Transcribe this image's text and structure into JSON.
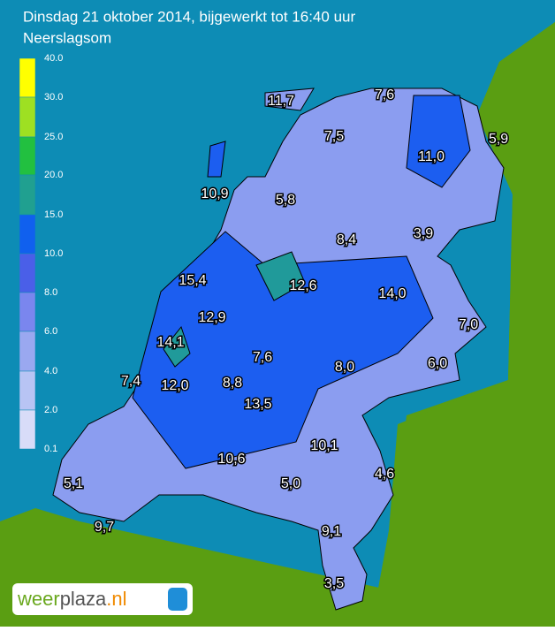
{
  "header": {
    "title": "Dinsdag 21 oktober 2014, bijgewerkt tot 16:40 uur",
    "subtitle": "Neerslagsom"
  },
  "legend": {
    "labels": [
      "40.0",
      "30.0",
      "25.0",
      "20.0",
      "15.0",
      "10.0",
      "8.0",
      "6.0",
      "4.0",
      "2.0",
      "0.1"
    ]
  },
  "stations": [
    "11,7",
    "7,6",
    "7,5",
    "5,9",
    "11,0",
    "10,9",
    "5,8",
    "8,4",
    "3,9",
    "15,4",
    "12,6",
    "14,0",
    "12,9",
    "7,0",
    "14,1",
    "7,6",
    "8,0",
    "6,0",
    "7,4",
    "12,0",
    "8,8",
    "13,5",
    "10,1",
    "10,6",
    "5,0",
    "4,6",
    "5,1",
    "9,7",
    "9,1",
    "3,5"
  ],
  "logo": {
    "weer": "weer",
    "plaza": "plaza",
    "nl": ".nl"
  }
}
